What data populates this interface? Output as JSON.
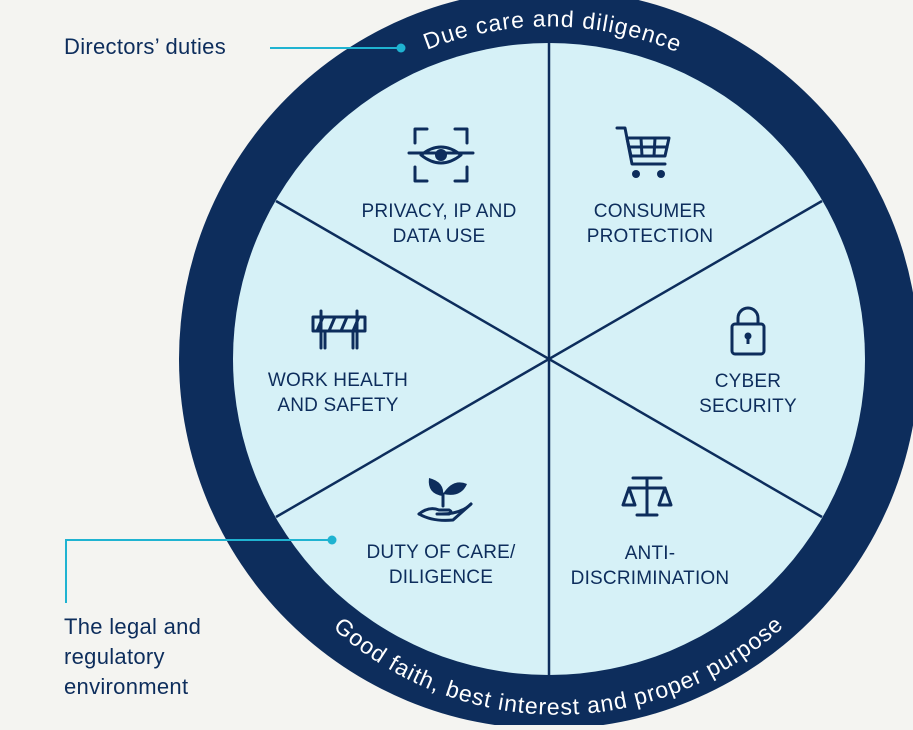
{
  "ring": {
    "top_text": "Due care and diligence",
    "bottom_text": "Good faith, best interest and proper purpose"
  },
  "callouts": {
    "directors": "Directors’ duties",
    "legal": "The legal and\nregulatory\nenvironment"
  },
  "sectors": [
    {
      "id": "privacy",
      "label": "PRIVACY, IP AND\nDATA USE",
      "icon": "eye-scan-icon"
    },
    {
      "id": "consumer",
      "label": "CONSUMER\nPROTECTION",
      "icon": "shopping-cart-icon"
    },
    {
      "id": "cyber",
      "label": "CYBER\nSECURITY",
      "icon": "padlock-icon"
    },
    {
      "id": "anti",
      "label": "ANTI-\nDISCRIMINATION",
      "icon": "scales-icon"
    },
    {
      "id": "duty",
      "label": "DUTY OF CARE/\nDILIGENCE",
      "icon": "hand-plant-icon"
    },
    {
      "id": "whs",
      "label": "WORK HEALTH\nAND SAFETY",
      "icon": "barrier-icon"
    }
  ],
  "colors": {
    "ring": "#0d2d5c",
    "inner": "#d6f1f7",
    "accent": "#1fb3d1",
    "text": "#0d2d5c"
  }
}
